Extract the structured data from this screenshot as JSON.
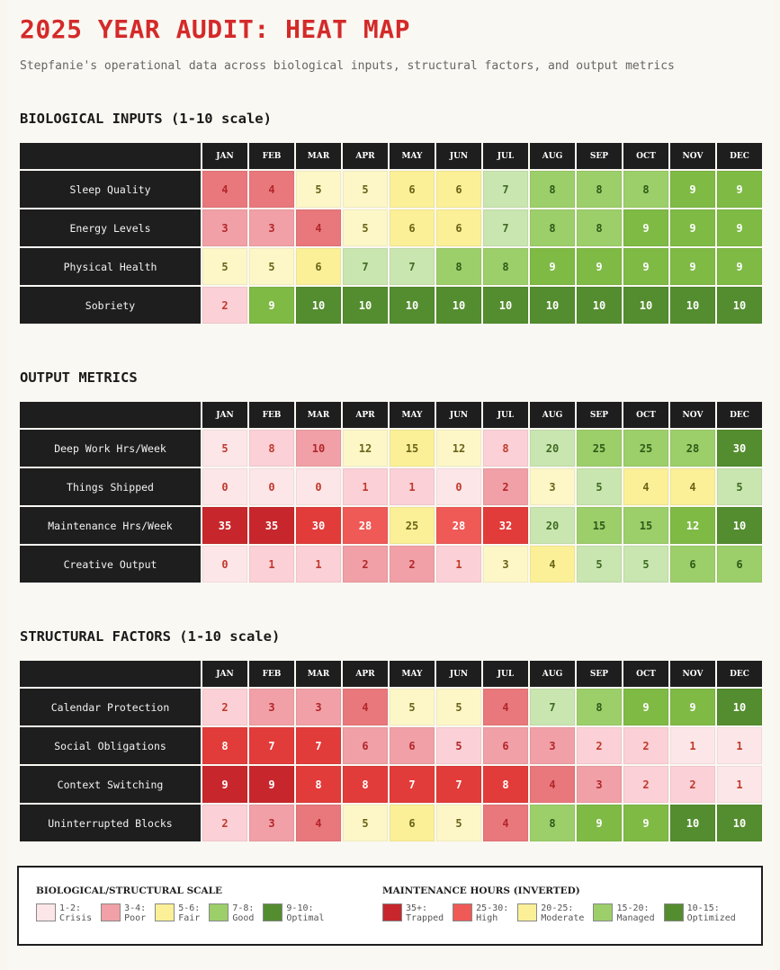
{
  "header": {
    "title": "2025 YEAR AUDIT: HEAT MAP",
    "subtitle": "Stepfanie's operational data across biological inputs, structural factors, and output metrics"
  },
  "colors": {
    "title_red": "#d42a2a",
    "header_dark": "#1e1e1e",
    "crisis": "#fde6e8",
    "poor_light": "#fbd0d6",
    "poor": "#f0a0a6",
    "poor_dark": "#e8787c",
    "fair_light": "#fdf7c8",
    "fair": "#fbf097",
    "good_light": "#c9e5b0",
    "good": "#9ccf6a",
    "good_mid": "#7fba45",
    "optimal": "#548d2f",
    "trapped": "#c7272c",
    "high": "#e23c3a",
    "high_soft": "#ef5a56"
  },
  "chart_data": [
    {
      "type": "heatmap",
      "title": "BIOLOGICAL INPUTS (1-10 scale)",
      "categories": [
        "JAN",
        "FEB",
        "MAR",
        "APR",
        "MAY",
        "JUN",
        "JUL",
        "AUG",
        "SEP",
        "OCT",
        "NOV",
        "DEC"
      ],
      "series": [
        {
          "name": "Sleep Quality",
          "values": [
            4,
            4,
            5,
            5,
            6,
            6,
            7,
            8,
            8,
            8,
            9,
            9
          ]
        },
        {
          "name": "Energy Levels",
          "values": [
            3,
            3,
            4,
            5,
            6,
            6,
            7,
            8,
            8,
            9,
            9,
            9
          ]
        },
        {
          "name": "Physical Health",
          "values": [
            5,
            5,
            6,
            7,
            7,
            8,
            8,
            9,
            9,
            9,
            9,
            9
          ]
        },
        {
          "name": "Sobriety",
          "values": [
            2,
            9,
            10,
            10,
            10,
            10,
            10,
            10,
            10,
            10,
            10,
            10
          ]
        }
      ]
    },
    {
      "type": "heatmap",
      "title": "OUTPUT METRICS",
      "categories": [
        "JAN",
        "FEB",
        "MAR",
        "APR",
        "MAY",
        "JUN",
        "JUL",
        "AUG",
        "SEP",
        "OCT",
        "NOV",
        "DEC"
      ],
      "series": [
        {
          "name": "Deep Work Hrs/Week",
          "values": [
            5,
            8,
            10,
            12,
            15,
            12,
            8,
            20,
            25,
            25,
            28,
            30
          ]
        },
        {
          "name": "Things Shipped",
          "values": [
            0,
            0,
            0,
            1,
            1,
            0,
            2,
            3,
            5,
            4,
            4,
            5
          ]
        },
        {
          "name": "Maintenance Hrs/Week",
          "values": [
            35,
            35,
            30,
            28,
            25,
            28,
            32,
            20,
            15,
            15,
            12,
            10
          ]
        },
        {
          "name": "Creative Output",
          "values": [
            0,
            1,
            1,
            2,
            2,
            1,
            3,
            4,
            5,
            5,
            6,
            6
          ]
        }
      ]
    },
    {
      "type": "heatmap",
      "title": "STRUCTURAL FACTORS (1-10 scale)",
      "categories": [
        "JAN",
        "FEB",
        "MAR",
        "APR",
        "MAY",
        "JUN",
        "JUL",
        "AUG",
        "SEP",
        "OCT",
        "NOV",
        "DEC"
      ],
      "series": [
        {
          "name": "Calendar Protection",
          "values": [
            2,
            3,
            3,
            4,
            5,
            5,
            4,
            7,
            8,
            9,
            9,
            10
          ]
        },
        {
          "name": "Social Obligations",
          "values": [
            8,
            7,
            7,
            6,
            6,
            5,
            6,
            3,
            2,
            2,
            1,
            1
          ]
        },
        {
          "name": "Context Switching",
          "values": [
            9,
            9,
            8,
            8,
            7,
            7,
            8,
            4,
            3,
            2,
            2,
            1
          ]
        },
        {
          "name": "Uninterrupted Blocks",
          "values": [
            2,
            3,
            4,
            5,
            6,
            5,
            4,
            8,
            9,
            9,
            10,
            10
          ]
        }
      ]
    }
  ],
  "legend": {
    "groups": [
      {
        "title": "BIOLOGICAL/STRUCTURAL SCALE",
        "items": [
          {
            "label": "1-2:\nCrisis",
            "color": "#fde6e8"
          },
          {
            "label": "3-4:\nPoor",
            "color": "#f0a0a6"
          },
          {
            "label": "5-6:\nFair",
            "color": "#fbf097"
          },
          {
            "label": "7-8:\nGood",
            "color": "#9ccf6a"
          },
          {
            "label": "9-10:\nOptimal",
            "color": "#548d2f"
          }
        ]
      },
      {
        "title": "MAINTENANCE HOURS (INVERTED)",
        "items": [
          {
            "label": "35+:\nTrapped",
            "color": "#c7272c"
          },
          {
            "label": "25-30:\nHigh",
            "color": "#ef5a56"
          },
          {
            "label": "20-25:\nModerate",
            "color": "#fbf097"
          },
          {
            "label": "15-20:\nManaged",
            "color": "#9ccf6a"
          },
          {
            "label": "10-15:\nOptimized",
            "color": "#548d2f"
          }
        ]
      }
    ]
  }
}
